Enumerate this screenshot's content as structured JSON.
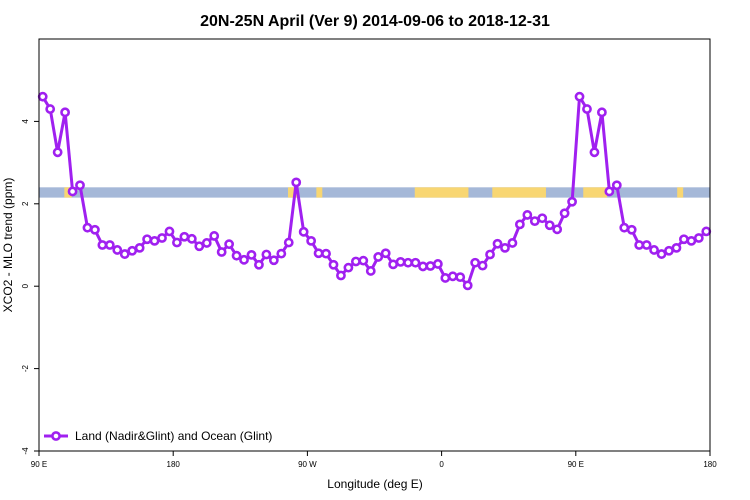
{
  "chart_data": {
    "type": "line",
    "title": "20N-25N April (Ver 9)   2014-09-06 to 2018-12-31",
    "xlabel": "Longitude (deg E)",
    "ylabel": "XCO2 - MLO trend (ppm)",
    "xlim": [
      90,
      540
    ],
    "ylim": [
      -4,
      6
    ],
    "x_ticks": [
      {
        "value": 90,
        "label": "90 E"
      },
      {
        "value": 180,
        "label": "180"
      },
      {
        "value": 270,
        "label": "90 W"
      },
      {
        "value": 360,
        "label": "0"
      },
      {
        "value": 450,
        "label": "90 E"
      },
      {
        "value": 540,
        "label": "180"
      }
    ],
    "y_ticks": [
      {
        "value": -4,
        "label": "-4"
      },
      {
        "value": -2,
        "label": "-2"
      },
      {
        "value": 0,
        "label": "0"
      },
      {
        "value": 2,
        "label": "2"
      },
      {
        "value": 4,
        "label": "4"
      }
    ],
    "legend_position": "bottom-left",
    "land_ocean_band": {
      "y_range": [
        2.15,
        2.4
      ],
      "ocean_color": "#a5b8d8",
      "land_color": "#f8d672",
      "land_segments": [
        [
          107,
          112
        ],
        [
          257,
          263
        ],
        [
          276,
          280
        ],
        [
          342,
          378
        ],
        [
          394,
          430
        ],
        [
          455,
          471
        ],
        [
          518,
          522
        ]
      ]
    },
    "series": [
      {
        "name": "Land (Nadir&Glint) and Ocean (Glint)",
        "color": "#a020f0",
        "x": [
          92.5,
          97.5,
          102.5,
          107.5,
          112.5,
          117.5,
          122.5,
          127.5,
          132.5,
          137.5,
          142.5,
          147.5,
          152.5,
          157.5,
          162.5,
          167.5,
          172.5,
          177.5,
          182.5,
          187.5,
          192.5,
          197.5,
          202.5,
          207.5,
          212.5,
          217.5,
          222.5,
          227.5,
          232.5,
          237.5,
          242.5,
          247.5,
          252.5,
          257.5,
          262.5,
          267.5,
          272.5,
          277.5,
          282.5,
          287.5,
          292.5,
          297.5,
          302.5,
          307.5,
          312.5,
          317.5,
          322.5,
          327.5,
          332.5,
          337.5,
          342.5,
          347.5,
          352.5,
          357.5,
          362.5,
          367.5,
          372.5,
          377.5,
          382.5,
          387.5,
          392.5,
          397.5,
          402.5,
          407.5,
          412.5,
          417.5,
          422.5,
          427.5,
          432.5,
          437.5,
          442.5,
          447.5,
          452.5,
          457.5,
          462.5,
          467.5,
          472.5,
          477.5,
          482.5,
          487.5,
          492.5,
          497.5,
          502.5,
          507.5,
          512.5,
          517.5,
          522.5,
          527.5,
          532.5,
          537.5
        ],
        "values": [
          4.6,
          4.3,
          3.25,
          4.22,
          2.3,
          2.45,
          1.42,
          1.37,
          1.0,
          1.0,
          0.88,
          0.78,
          0.86,
          0.93,
          1.14,
          1.1,
          1.17,
          1.33,
          1.06,
          1.2,
          1.15,
          0.97,
          1.05,
          1.22,
          0.83,
          1.02,
          0.74,
          0.64,
          0.76,
          0.52,
          0.77,
          0.63,
          0.79,
          1.06,
          2.52,
          1.32,
          1.1,
          0.8,
          0.79,
          0.52,
          0.26,
          0.45,
          0.6,
          0.62,
          0.37,
          0.71,
          0.8,
          0.53,
          0.59,
          0.57,
          0.57,
          0.48,
          0.49,
          0.54,
          0.2,
          0.24,
          0.22,
          0.02,
          0.57,
          0.5,
          0.77,
          1.03,
          0.93,
          1.05,
          1.5,
          1.73,
          1.58,
          1.65,
          1.48,
          1.38,
          1.77,
          2.05,
          4.6,
          4.3,
          3.25,
          4.22,
          2.3,
          2.45,
          1.42,
          1.37,
          1.0,
          1.0,
          0.88,
          0.78,
          0.86,
          0.93,
          1.14,
          1.1,
          1.17,
          1.33
        ]
      }
    ]
  }
}
